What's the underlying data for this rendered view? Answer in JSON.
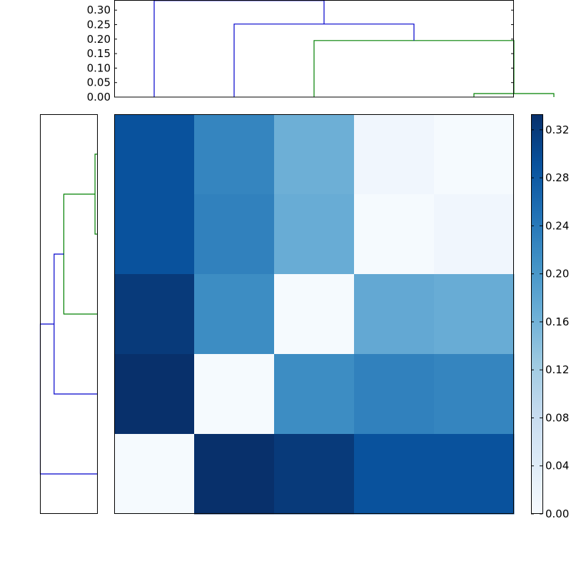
{
  "chart_data": [
    {
      "type": "dendrogram",
      "orientation": "top",
      "ylim": [
        0,
        0.335
      ],
      "yticks": [
        "0.00",
        "0.05",
        "0.10",
        "0.15",
        "0.20",
        "0.25",
        "0.30"
      ],
      "ytick_values": [
        0.0,
        0.05,
        0.1,
        0.15,
        0.2,
        0.25,
        0.3
      ],
      "leaf_positions": [
        5,
        15,
        25,
        35,
        45
      ],
      "xlim": [
        0,
        50
      ],
      "links": [
        {
          "x": [
            45,
            45,
            55,
            55
          ],
          "y": [
            0.0,
            0.012,
            0.012,
            0.0
          ],
          "color": "#008000"
        },
        {
          "x": [
            25,
            25,
            50,
            50
          ],
          "y": [
            0.0,
            0.195,
            0.195,
            0.012
          ],
          "color": "#008000"
        },
        {
          "x": [
            15,
            15,
            37.5,
            37.5
          ],
          "y": [
            0.0,
            0.252,
            0.252,
            0.195
          ],
          "color": "#0000cc"
        },
        {
          "x": [
            5,
            5,
            26.25,
            26.25
          ],
          "y": [
            0.0,
            0.333,
            0.333,
            0.252
          ],
          "color": "#0000cc"
        }
      ]
    },
    {
      "type": "dendrogram",
      "orientation": "left",
      "xlim": [
        0.335,
        0
      ],
      "links": [
        {
          "y": [
            5,
            5,
            15,
            15
          ],
          "x": [
            0.0,
            0.012,
            0.012,
            0.0
          ],
          "color": "#008000"
        },
        {
          "y": [
            10,
            10,
            25,
            25
          ],
          "x": [
            0.012,
            0.195,
            0.195,
            0.0
          ],
          "color": "#008000"
        },
        {
          "y": [
            17.5,
            17.5,
            35,
            35
          ],
          "x": [
            0.195,
            0.252,
            0.252,
            0.0
          ],
          "color": "#0000cc"
        },
        {
          "y": [
            26.25,
            26.25,
            45,
            45
          ],
          "x": [
            0.252,
            0.333,
            0.333,
            0.0
          ],
          "color": "#0000cc"
        }
      ]
    },
    {
      "type": "heatmap",
      "colormap": "Blues",
      "vmin": 0.0,
      "vmax": 0.333,
      "values": [
        [
          0.29,
          0.225,
          0.165,
          0.012,
          0.003
        ],
        [
          0.29,
          0.23,
          0.17,
          0.003,
          0.012
        ],
        [
          0.32,
          0.215,
          0.003,
          0.175,
          0.17
        ],
        [
          0.333,
          0.003,
          0.215,
          0.23,
          0.225
        ],
        [
          0.003,
          0.333,
          0.32,
          0.29,
          0.29
        ]
      ]
    },
    {
      "type": "colorbar",
      "colormap": "Blues",
      "vmin": 0.0,
      "vmax": 0.333,
      "ticks": [
        "0.00",
        "0.04",
        "0.08",
        "0.12",
        "0.16",
        "0.20",
        "0.24",
        "0.28",
        "0.32"
      ],
      "tick_values": [
        0.0,
        0.04,
        0.08,
        0.12,
        0.16,
        0.2,
        0.24,
        0.28,
        0.32
      ]
    }
  ],
  "colors": {
    "colormap_stops": [
      "#f7fbff",
      "#deebf7",
      "#c6dbef",
      "#9ecae1",
      "#6baed6",
      "#4292c6",
      "#2171b5",
      "#08519c",
      "#08306b"
    ],
    "axes_edge": "#000000",
    "background": "#ffffff"
  }
}
